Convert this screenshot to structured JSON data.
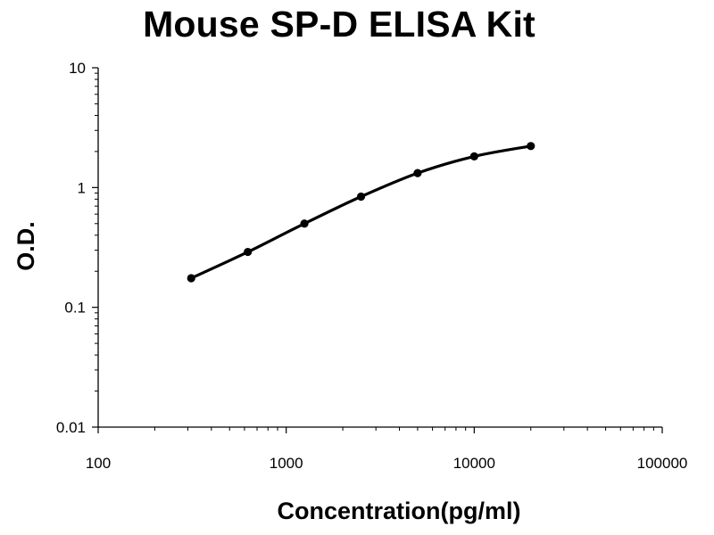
{
  "chart_data": {
    "type": "line",
    "title": "Mouse SP-D ELISA Kit",
    "xlabel": "Concentration(pg/ml)",
    "ylabel": "O.D.",
    "x_scale": "log",
    "y_scale": "log",
    "xlim": [
      100,
      100000
    ],
    "ylim": [
      0.01,
      10
    ],
    "x_tick_labels": [
      "100",
      "1000",
      "10000",
      "100000"
    ],
    "y_tick_labels": [
      "0.01",
      "0.1",
      "1",
      "10"
    ],
    "grid": false,
    "legend": "none",
    "series": [
      {
        "color": "#000000",
        "x": [
          312.5,
          625,
          1250,
          2500,
          5000,
          10000,
          20000
        ],
        "y": [
          0.175,
          0.29,
          0.5,
          0.84,
          1.32,
          1.82,
          2.22
        ]
      }
    ]
  }
}
